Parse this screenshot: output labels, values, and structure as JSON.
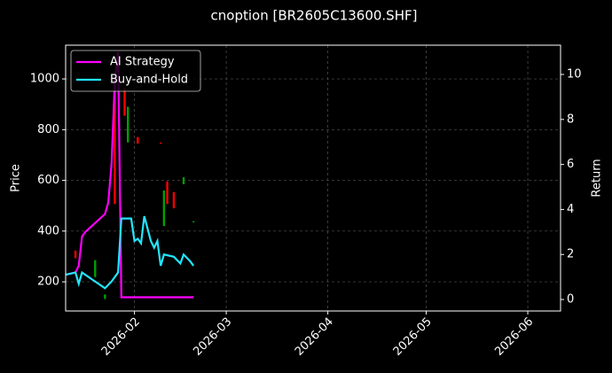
{
  "chart_data": {
    "type": "candlestick",
    "title": "cnoption [BR2605C13600.SHF]",
    "ylabel": "Price",
    "y2label": "Return",
    "xlim": [
      "2026-01-11",
      "2026-06-11"
    ],
    "xticks": [
      {
        "value": "2026-02-01",
        "label": "2026-02"
      },
      {
        "value": "2026-03-01",
        "label": "2026-03"
      },
      {
        "value": "2026-04-01",
        "label": "2026-04"
      },
      {
        "value": "2026-05-01",
        "label": "2026-05"
      },
      {
        "value": "2026-06-01",
        "label": "2026-06"
      }
    ],
    "ylim": [
      85,
      1133
    ],
    "yticks": [
      200,
      400,
      600,
      800,
      1000
    ],
    "y2lim": [
      -0.51,
      11.3
    ],
    "y2ticks": [
      0,
      2,
      4,
      6,
      8,
      10
    ],
    "grid": true,
    "legend": "upper left",
    "candles": {
      "x": [
        "2026-01-14",
        "2026-01-20",
        "2026-01-23",
        "2026-01-26",
        "2026-01-29",
        "2026-01-30",
        "2026-02-02",
        "2026-02-09",
        "2026-02-10",
        "2026-02-11",
        "2026-02-13",
        "2026-02-16",
        "2026-02-19"
      ],
      "open": [
        322,
        220,
        135,
        986,
        960,
        750,
        770,
        748,
        420,
        595,
        553,
        585,
        437
      ],
      "high": [
        325,
        285,
        150,
        990,
        965,
        890,
        772,
        750,
        560,
        597,
        555,
        612,
        440
      ],
      "low": [
        290,
        217,
        130,
        507,
        855,
        750,
        745,
        745,
        420,
        507,
        490,
        585,
        435
      ],
      "close": [
        295,
        285,
        150,
        507,
        855,
        890,
        745,
        746,
        560,
        507,
        490,
        612,
        438
      ],
      "up_color": "#00a000",
      "down_color": "#ff0000"
    },
    "series": [
      {
        "name": "AI Strategy",
        "color": "#ff00ff",
        "axis": "y2",
        "x": [
          "2026-01-11",
          "2026-01-14",
          "2026-01-15",
          "2026-01-16",
          "2026-01-17",
          "2026-01-20",
          "2026-01-23",
          "2026-01-24",
          "2026-01-25",
          "2026-01-26",
          "2026-01-27",
          "2026-01-28",
          "2026-02-19"
        ],
        "values": [
          1.1,
          1.2,
          1.5,
          2.8,
          3.0,
          3.4,
          3.8,
          4.3,
          6.0,
          9.7,
          11.0,
          0.1,
          0.1
        ]
      },
      {
        "name": "Buy-and-Hold",
        "color": "#22e5ff",
        "axis": "y2",
        "x": [
          "2026-01-11",
          "2026-01-14",
          "2026-01-15",
          "2026-01-16",
          "2026-01-17",
          "2026-01-20",
          "2026-01-23",
          "2026-01-25",
          "2026-01-27",
          "2026-01-28",
          "2026-01-31",
          "2026-02-01",
          "2026-02-02",
          "2026-02-03",
          "2026-02-04",
          "2026-02-06",
          "2026-02-07",
          "2026-02-08",
          "2026-02-09",
          "2026-02-10",
          "2026-02-13",
          "2026-02-15",
          "2026-02-16",
          "2026-02-18",
          "2026-02-19"
        ],
        "values": [
          1.1,
          1.2,
          0.7,
          1.2,
          1.1,
          0.8,
          0.5,
          0.8,
          1.2,
          3.6,
          3.6,
          2.6,
          2.7,
          2.5,
          3.7,
          2.6,
          2.3,
          2.6,
          1.5,
          2.0,
          1.9,
          1.6,
          2.0,
          1.7,
          1.5
        ]
      }
    ]
  }
}
